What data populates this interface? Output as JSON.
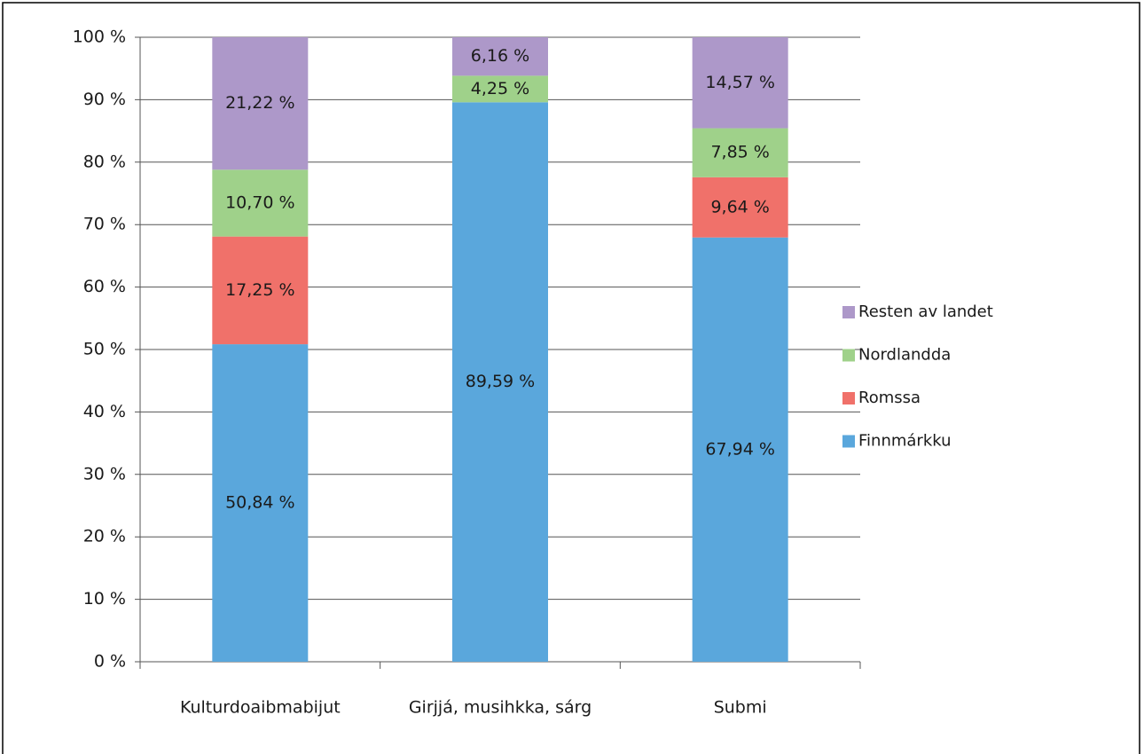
{
  "chart_data": {
    "type": "stacked_bar",
    "categories": [
      "Kulturdoaibmabijut",
      "Girjjá, musihkka, sárg",
      "Submi"
    ],
    "series": [
      {
        "name": "Finnmárkku",
        "color": "#5aa7dc",
        "values": [
          50.84,
          89.59,
          67.94
        ],
        "value_labels": [
          "50,84 %",
          "89,59 %",
          "67,94 %"
        ]
      },
      {
        "name": "Romssa",
        "color": "#f0716a",
        "values": [
          17.25,
          null,
          9.64
        ],
        "value_labels": [
          "17,25 %",
          null,
          "9,64 %"
        ]
      },
      {
        "name": "Nordlandda",
        "color": "#9fd18a",
        "values": [
          10.7,
          4.25,
          7.85
        ],
        "value_labels": [
          "10,70 %",
          "4,25 %",
          "7,85 %"
        ]
      },
      {
        "name": "Resten av landet",
        "color": "#ad98c9",
        "values": [
          21.22,
          6.16,
          14.57
        ],
        "value_labels": [
          "21,22 %",
          "6,16 %",
          "14,57 %"
        ]
      }
    ],
    "ylim": [
      0,
      100
    ],
    "yticks": [
      {
        "value": 0,
        "label": "0 %"
      },
      {
        "value": 10,
        "label": "10 %"
      },
      {
        "value": 20,
        "label": "20 %"
      },
      {
        "value": 30,
        "label": "30 %"
      },
      {
        "value": 40,
        "label": "40 %"
      },
      {
        "value": 50,
        "label": "50 %"
      },
      {
        "value": 60,
        "label": "60 %"
      },
      {
        "value": 70,
        "label": "70 %"
      },
      {
        "value": 80,
        "label": "80 %"
      },
      {
        "value": 90,
        "label": "90 %"
      },
      {
        "value": 100,
        "label": "100 %"
      }
    ],
    "grid": true,
    "legend": "right"
  }
}
